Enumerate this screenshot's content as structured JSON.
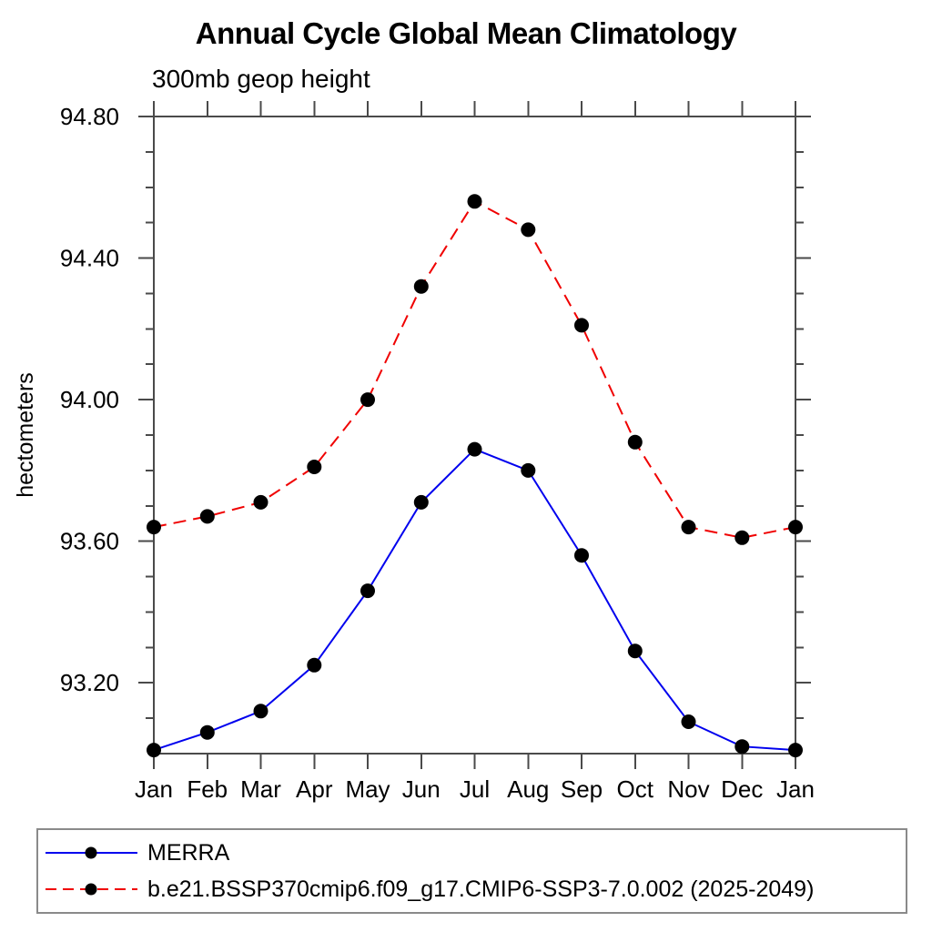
{
  "page": {
    "background": "#ffffff"
  },
  "chart_data": {
    "type": "line",
    "title": "Annual Cycle Global Mean Climatology",
    "subtitle": "300mb geop height",
    "ylabel": "hectometers",
    "xlabel": "",
    "categories": [
      "Jan",
      "Feb",
      "Mar",
      "Apr",
      "May",
      "Jun",
      "Jul",
      "Aug",
      "Sep",
      "Oct",
      "Nov",
      "Dec",
      "Jan"
    ],
    "ylim": [
      93.0,
      94.8
    ],
    "ytick_values": [
      93.2,
      93.6,
      94.0,
      94.4,
      94.8
    ],
    "ytick_labels": [
      "93.20",
      "93.60",
      "94.00",
      "94.40",
      "94.80"
    ],
    "yminor_step": 0.1,
    "grid": false,
    "legend_position": "bottom-left-box",
    "marker": "filled-circle",
    "marker_color": "#000000",
    "frame_color": "#4a4a4a",
    "series": [
      {
        "name": "MERRA",
        "color": "#0000ee",
        "style": "solid",
        "values": [
          93.01,
          93.06,
          93.12,
          93.25,
          93.46,
          93.71,
          93.86,
          93.8,
          93.56,
          93.29,
          93.09,
          93.02,
          93.01
        ]
      },
      {
        "name": "b.e21.BSSP370cmip6.f09_g17.CMIP6-SSP3-7.0.002 (2025-2049)",
        "color": "#f00000",
        "style": "dashed",
        "values": [
          93.64,
          93.67,
          93.71,
          93.81,
          94.0,
          94.32,
          94.56,
          94.48,
          94.21,
          93.88,
          93.64,
          93.61,
          93.64
        ]
      }
    ]
  }
}
